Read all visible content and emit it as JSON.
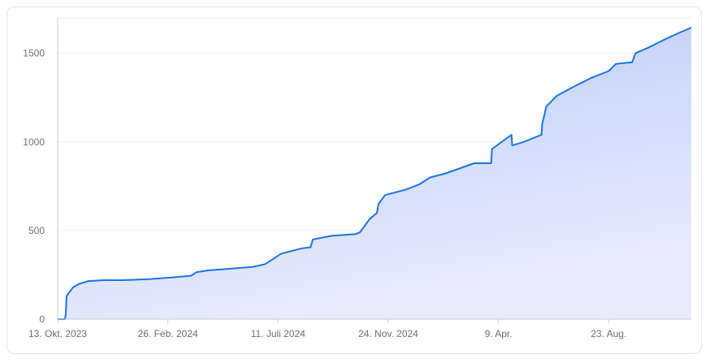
{
  "chart_data": {
    "type": "area",
    "title": "",
    "xlabel": "",
    "ylabel": "",
    "ylim": [
      0,
      1700
    ],
    "yticks": [
      0,
      500,
      1000,
      1500
    ],
    "xticks": [
      {
        "label": "13. Okt. 2023",
        "day": 0
      },
      {
        "label": "26. Feb. 2024",
        "day": 136
      },
      {
        "label": "11. Juli 2024",
        "day": 272
      },
      {
        "label": "24. Nov. 2024",
        "day": 408
      },
      {
        "label": "9. Apr.",
        "day": 544
      },
      {
        "label": "23. Aug.",
        "day": 680
      }
    ],
    "grid": true,
    "colors": {
      "line": "#1a73e8",
      "fill_top": "#b9cbf8",
      "fill_bottom": "#e7ecfd",
      "grid": "#f0f1f3",
      "axis": "#c9ccd1"
    },
    "series": [
      {
        "name": "",
        "x": [
          "2023-10-13",
          "2023-10-22",
          "2023-10-23",
          "2023-10-24",
          "2023-10-27",
          "2023-11-01",
          "2023-11-09",
          "2023-11-20",
          "2023-12-10",
          "2024-01-01",
          "2024-02-01",
          "2024-03-01",
          "2024-03-26",
          "2024-04-01",
          "2024-04-15",
          "2024-05-15",
          "2024-06-10",
          "2024-06-25",
          "2024-07-05",
          "2024-07-15",
          "2024-08-10",
          "2024-08-20",
          "2024-08-23",
          "2024-09-15",
          "2024-10-15",
          "2024-10-20",
          "2024-10-25",
          "2024-11-01",
          "2024-11-10",
          "2024-11-12",
          "2024-11-20",
          "2024-12-15",
          "2025-01-01",
          "2025-01-15",
          "2025-02-01",
          "2025-02-20",
          "2025-03-10",
          "2025-03-31",
          "2025-04-01",
          "2025-04-25",
          "2025-04-26",
          "2025-05-10",
          "2025-06-01",
          "2025-06-02",
          "2025-06-07",
          "2025-06-20",
          "2025-07-10",
          "2025-08-01",
          "2025-08-23",
          "2025-09-01",
          "2025-09-21",
          "2025-09-25",
          "2025-10-10",
          "2025-11-01",
          "2025-11-20",
          "2025-12-03"
        ],
        "y": [
          0,
          0,
          30,
          130,
          150,
          180,
          200,
          215,
          220,
          220,
          225,
          235,
          245,
          265,
          275,
          285,
          295,
          310,
          340,
          370,
          400,
          405,
          450,
          470,
          480,
          490,
          520,
          565,
          600,
          650,
          700,
          730,
          760,
          800,
          820,
          850,
          880,
          880,
          960,
          1040,
          980,
          1000,
          1040,
          1100,
          1200,
          1260,
          1310,
          1360,
          1400,
          1440,
          1450,
          1500,
          1530,
          1580,
          1620,
          1645
        ]
      }
    ]
  }
}
